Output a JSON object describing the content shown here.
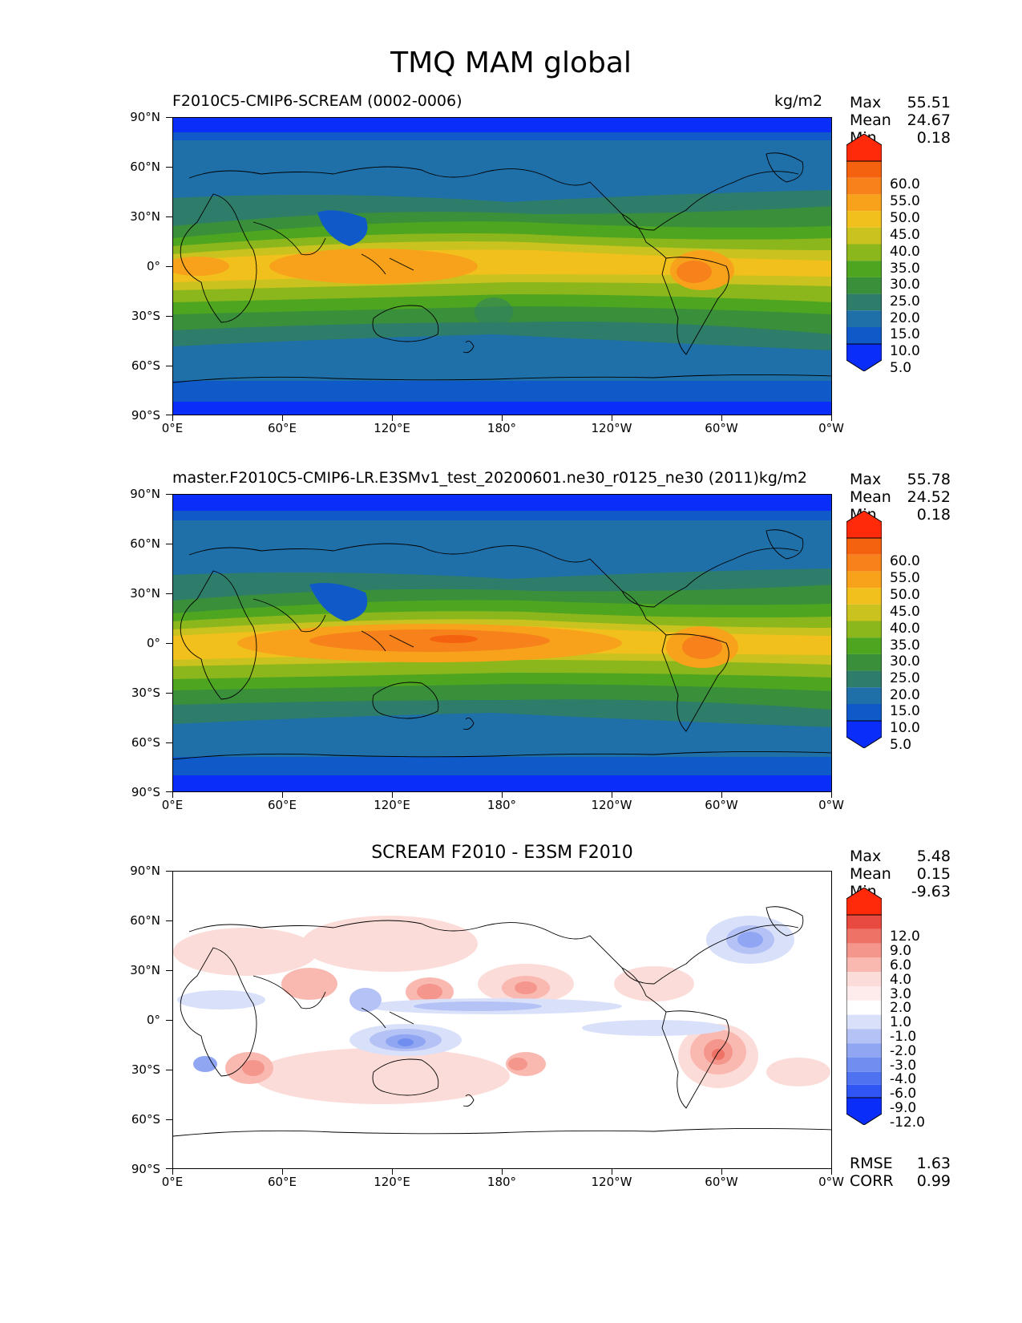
{
  "suptitle": "TMQ MAM global",
  "axes": {
    "y_labels": [
      "90°N",
      "60°N",
      "30°N",
      "0°",
      "30°S",
      "60°S",
      "90°S"
    ],
    "x_labels": [
      "0°E",
      "60°E",
      "120°E",
      "180°",
      "120°W",
      "60°W",
      "0°W"
    ]
  },
  "panels": [
    {
      "title_left": "F2010C5-CMIP6-SCREAM (0002-0006)",
      "title_right": "kg/m2",
      "stats": {
        "max_label": "Max",
        "max": "55.51",
        "mean_label": "Mean",
        "mean": "24.67",
        "min_label": "Min",
        "min": "0.18"
      },
      "colorbar_labels": [
        "60.0",
        "55.0",
        "50.0",
        "45.0",
        "40.0",
        "35.0",
        "30.0",
        "25.0",
        "20.0",
        "15.0",
        "10.0",
        "5.0"
      ]
    },
    {
      "title_left": "master.F2010C5-CMIP6-LR.E3SMv1_test_20200601.ne30_r0125_ne30 (2011)kg/m2",
      "title_right": "",
      "stats": {
        "max_label": "Max",
        "max": "55.78",
        "mean_label": "Mean",
        "mean": "24.52",
        "min_label": "Min",
        "min": "0.18"
      },
      "colorbar_labels": [
        "60.0",
        "55.0",
        "50.0",
        "45.0",
        "40.0",
        "35.0",
        "30.0",
        "25.0",
        "20.0",
        "15.0",
        "10.0",
        "5.0"
      ]
    },
    {
      "title_center": "SCREAM F2010 - E3SM F2010",
      "stats": {
        "max_label": "Max",
        "max": "5.48",
        "mean_label": "Mean",
        "mean": "0.15",
        "min_label": "Min",
        "min": "-9.63"
      },
      "colorbar_labels": [
        "12.0",
        "9.0",
        "6.0",
        "4.0",
        "3.0",
        "2.0",
        "1.0",
        "-1.0",
        "-2.0",
        "-3.0",
        "-4.0",
        "-6.0",
        "-9.0",
        "-12.0"
      ],
      "rmse_label": "RMSE",
      "rmse": "1.63",
      "corr_label": "CORR",
      "corr": "0.99"
    }
  ],
  "colors": {
    "tmq_scale": [
      "#0a2dfa",
      "#0f5ac8",
      "#1f6fa8",
      "#2e7d6a",
      "#3a8f3a",
      "#4ea51f",
      "#8bb71c",
      "#c9c21f",
      "#f2c01c",
      "#f7a21a",
      "#f7811a",
      "#f5620f",
      "#ff2a0a"
    ],
    "diff_scale": [
      "#0a2dfa",
      "#2f55f5",
      "#4f73f0",
      "#6f8ef0",
      "#90a6f2",
      "#b5c2f5",
      "#d9e0fa",
      "#ffffff",
      "#fcdcd8",
      "#f9b9b1",
      "#f4968b",
      "#ee7266",
      "#e84a3f",
      "#ff2a0a"
    ]
  }
}
